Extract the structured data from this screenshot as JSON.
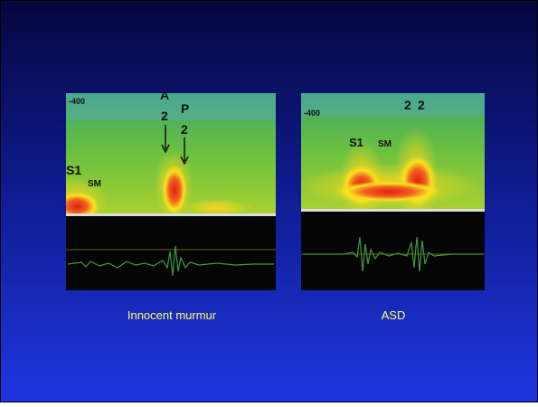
{
  "panels": [
    {
      "scale_label": "-400",
      "annotations": [
        "A",
        "2",
        "P",
        "2",
        "S1",
        "SM"
      ],
      "caption": "Innocent murmur"
    },
    {
      "scale_label": "-400",
      "annotations": [
        "2",
        "2",
        "S1",
        "SM"
      ],
      "caption": "ASD"
    }
  ]
}
